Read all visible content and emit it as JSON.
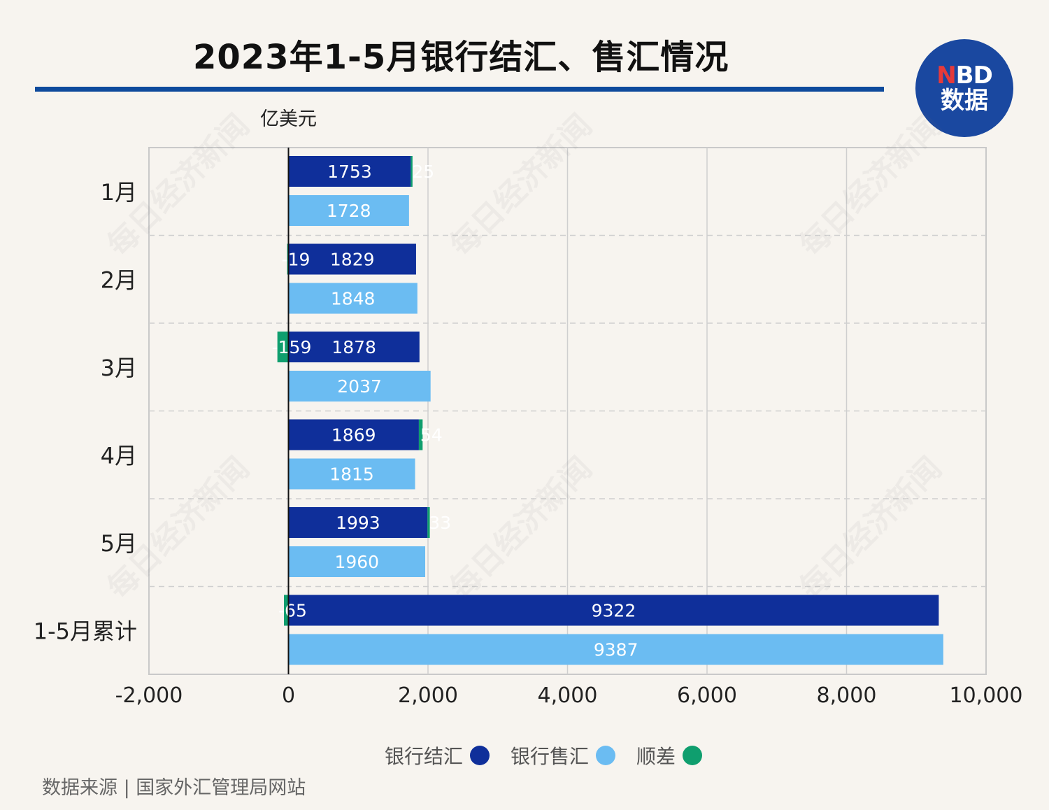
{
  "title": "2023年1-5月银行结汇、售汇情况",
  "logo": {
    "line1_accent": "N",
    "line1_rest": "BD",
    "line2": "数据"
  },
  "unit": "亿美元",
  "source": "数据来源 | 国家外汇管理局网站",
  "watermark": "每日经济新闻",
  "colors": {
    "settlement": "#0f2f9a",
    "sales": "#6bbcf2",
    "balance": "#0f9e6e",
    "rule": "#0e4a9c"
  },
  "legend": [
    {
      "label": "银行结汇",
      "color": "#0f2f9a"
    },
    {
      "label": "银行售汇",
      "color": "#6bbcf2"
    },
    {
      "label": "顺差",
      "color": "#0f9e6e"
    }
  ],
  "chart_data": {
    "type": "bar",
    "orientation": "horizontal",
    "categories": [
      "1月",
      "2月",
      "3月",
      "4月",
      "5月",
      "1-5月累计"
    ],
    "series": [
      {
        "name": "银行结汇",
        "values": [
          1753,
          1829,
          1878,
          1869,
          1993,
          9322
        ]
      },
      {
        "name": "银行售汇",
        "values": [
          1728,
          1848,
          2037,
          1815,
          1960,
          9387
        ]
      },
      {
        "name": "顺差",
        "values": [
          25,
          -19,
          -159,
          54,
          33,
          -65
        ]
      }
    ],
    "xlim": [
      -2000,
      10000
    ],
    "xticks": [
      -2000,
      0,
      2000,
      4000,
      6000,
      8000,
      10000
    ],
    "xtick_labels": [
      "-2,000",
      "0",
      "2,000",
      "4,000",
      "6,000",
      "8,000",
      "10,000"
    ],
    "balance_labels": [
      "25",
      "-19",
      "-159",
      "54",
      "33",
      "-65"
    ],
    "grid": true,
    "legend_position": "bottom"
  }
}
